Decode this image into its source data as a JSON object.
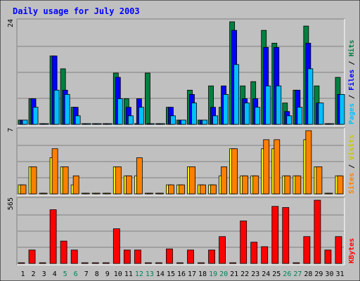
{
  "chart_data": {
    "type": "bar",
    "title": "Daily usage for July 2003",
    "days": [
      "1",
      "2",
      "3",
      "4",
      "5",
      "6",
      "7",
      "8",
      "9",
      "10",
      "11",
      "12",
      "13",
      "14",
      "15",
      "16",
      "17",
      "18",
      "19",
      "20",
      "21",
      "22",
      "23",
      "24",
      "25",
      "26",
      "27",
      "28",
      "29",
      "30",
      "31"
    ],
    "weekend_days": [
      "5",
      "6",
      "12",
      "13",
      "19",
      "20",
      "26",
      "27"
    ],
    "panels": [
      {
        "id": "hits-files-pages",
        "ymax_label": "24",
        "ylim": [
          0,
          24
        ],
        "legend": [
          "Pages",
          "Files",
          "Hits"
        ],
        "series": [
          {
            "name": "Hits",
            "color": "#008040",
            "values": [
              1,
              6,
              0,
              16,
              13,
              4,
              0,
              0,
              0,
              12,
              6,
              0,
              12,
              0,
              4,
              1,
              8,
              1,
              9,
              4,
              24,
              9,
              10,
              22,
              19,
              5,
              8,
              23,
              9,
              0,
              11
            ]
          },
          {
            "name": "Files",
            "color": "#0000ff",
            "values": [
              1,
              6,
              0,
              16,
              8,
              4,
              0,
              0,
              0,
              11,
              4,
              6,
              0,
              0,
              4,
              1,
              7,
              1,
              4,
              9,
              22,
              6,
              6,
              18,
              18,
              3,
              8,
              19,
              5,
              0,
              7
            ]
          },
          {
            "name": "Pages",
            "color": "#00c0ff",
            "values": [
              1,
              4,
              0,
              8,
              7,
              2,
              0,
              0,
              0,
              6,
              2,
              4,
              0,
              0,
              2,
              1,
              5,
              1,
              2,
              7,
              14,
              5,
              4,
              9,
              9,
              2,
              4,
              13,
              5,
              0,
              7
            ]
          }
        ]
      },
      {
        "id": "visits-sites",
        "ymax_label": "7",
        "ylim": [
          0,
          7
        ],
        "legend": [
          "Sites",
          "Visits"
        ],
        "series": [
          {
            "name": "Visits",
            "color": "#ffff00",
            "values": [
              1,
              3,
              0,
              4,
              3,
              1,
              0,
              0,
              0,
              3,
              2,
              2,
              0,
              0,
              1,
              1,
              3,
              1,
              1,
              2,
              5,
              2,
              2,
              5,
              5,
              2,
              2,
              6,
              3,
              0,
              2
            ]
          },
          {
            "name": "Sites",
            "color": "#ff8000",
            "values": [
              1,
              3,
              0,
              5,
              3,
              2,
              0,
              0,
              0,
              3,
              2,
              4,
              0,
              0,
              1,
              1,
              3,
              1,
              1,
              3,
              5,
              2,
              2,
              6,
              6,
              2,
              2,
              7,
              3,
              0,
              2
            ]
          }
        ]
      },
      {
        "id": "kbytes",
        "ymax_label": "565",
        "ylim": [
          0,
          565
        ],
        "legend": [
          "KBytes"
        ],
        "series": [
          {
            "name": "KBytes",
            "color": "#ff0000",
            "values": [
              0,
              120,
              0,
              480,
              200,
              120,
              0,
              0,
              0,
              310,
              120,
              120,
              0,
              0,
              130,
              0,
              120,
              0,
              120,
              240,
              0,
              380,
              190,
              150,
              510,
              500,
              0,
              240,
              565,
              120,
              240
            ]
          }
        ]
      }
    ]
  }
}
